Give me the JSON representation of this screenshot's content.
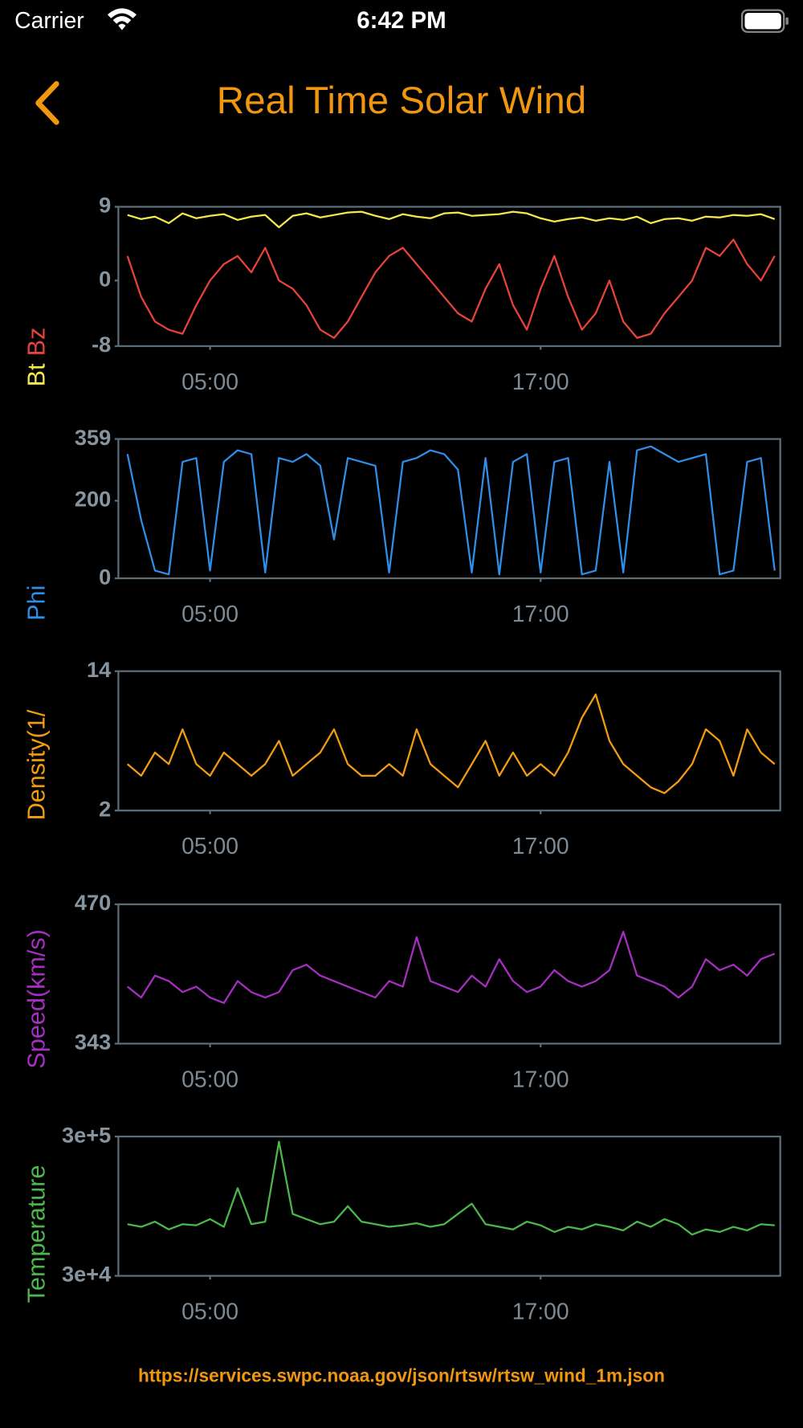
{
  "status_bar": {
    "carrier": "Carrier",
    "time": "6:42 PM"
  },
  "header": {
    "title": "Real Time Solar Wind"
  },
  "chart_data": [
    {
      "type": "line",
      "xlim": [
        1.67,
        25.7
      ],
      "xticks": [
        {
          "value": 5,
          "label": "05:00"
        },
        {
          "value": 17,
          "label": "17:00"
        }
      ],
      "ylim": [
        -8,
        9
      ],
      "yticks": [
        -8,
        0,
        9
      ],
      "x": [
        2,
        2.5,
        3,
        3.5,
        4,
        4.5,
        5,
        5.5,
        6,
        6.5,
        7,
        7.5,
        8,
        8.5,
        9,
        9.5,
        10,
        10.5,
        11,
        11.5,
        12,
        12.5,
        13,
        13.5,
        14,
        14.5,
        15,
        15.5,
        16,
        16.5,
        17,
        17.5,
        18,
        18.5,
        19,
        19.5,
        20,
        20.5,
        21,
        21.5,
        22,
        22.5,
        23,
        23.5,
        24,
        24.5,
        25,
        25.5
      ],
      "series": [
        {
          "name": "Bt",
          "color": "#f5e84a",
          "values": [
            8,
            7.5,
            7.8,
            7,
            8.2,
            7.6,
            7.9,
            8.1,
            7.4,
            7.8,
            8,
            6.5,
            7.9,
            8.2,
            7.7,
            8,
            8.3,
            8.4,
            7.9,
            7.5,
            8.1,
            7.8,
            7.6,
            8.2,
            8.3,
            7.9,
            8,
            8.1,
            8.4,
            8.2,
            7.6,
            7.2,
            7.5,
            7.7,
            7.3,
            7.6,
            7.4,
            7.8,
            7,
            7.5,
            7.6,
            7.3,
            7.8,
            7.7,
            8,
            7.9,
            8.1,
            7.5
          ]
        },
        {
          "name": "Bz",
          "color": "#e8433a",
          "values": [
            3,
            -2,
            -5,
            -6,
            -6.5,
            -3,
            0,
            2,
            3,
            1,
            4,
            0,
            -1,
            -3,
            -6,
            -7,
            -5,
            -2,
            1,
            3,
            4,
            2,
            0,
            -2,
            -4,
            -5,
            -1,
            2,
            -3,
            -6,
            -1,
            3,
            -2,
            -6,
            -4,
            0,
            -5,
            -7,
            -6.5,
            -4,
            -2,
            0,
            4,
            3,
            5,
            2,
            0,
            3
          ]
        }
      ]
    },
    {
      "type": "line",
      "xlim": [
        1.67,
        25.7
      ],
      "xticks": [
        {
          "value": 5,
          "label": "05:00"
        },
        {
          "value": 17,
          "label": "17:00"
        }
      ],
      "ylim": [
        0,
        359
      ],
      "yticks": [
        0,
        200,
        359
      ],
      "x": [
        2,
        2.5,
        3,
        3.5,
        4,
        4.5,
        5,
        5.5,
        6,
        6.5,
        7,
        7.5,
        8,
        8.5,
        9,
        9.5,
        10,
        10.5,
        11,
        11.5,
        12,
        12.5,
        13,
        13.5,
        14,
        14.5,
        15,
        15.5,
        16,
        16.5,
        17,
        17.5,
        18,
        18.5,
        19,
        19.5,
        20,
        20.5,
        21,
        21.5,
        22,
        22.5,
        23,
        23.5,
        24,
        24.5,
        25,
        25.5
      ],
      "series": [
        {
          "name": "Phi",
          "color": "#2f8fe8",
          "values": [
            320,
            150,
            20,
            10,
            300,
            310,
            20,
            300,
            330,
            320,
            15,
            310,
            300,
            320,
            290,
            100,
            310,
            300,
            290,
            15,
            300,
            310,
            330,
            320,
            280,
            15,
            310,
            10,
            300,
            320,
            15,
            300,
            310,
            10,
            20,
            300,
            15,
            330,
            340,
            320,
            300,
            310,
            320,
            10,
            20,
            300,
            310,
            20
          ]
        }
      ]
    },
    {
      "type": "line",
      "xlim": [
        1.67,
        25.7
      ],
      "xticks": [
        {
          "value": 5,
          "label": "05:00"
        },
        {
          "value": 17,
          "label": "17:00"
        }
      ],
      "ylim": [
        2,
        14
      ],
      "yticks": [
        2,
        14
      ],
      "x": [
        2,
        2.5,
        3,
        3.5,
        4,
        4.5,
        5,
        5.5,
        6,
        6.5,
        7,
        7.5,
        8,
        8.5,
        9,
        9.5,
        10,
        10.5,
        11,
        11.5,
        12,
        12.5,
        13,
        13.5,
        14,
        14.5,
        15,
        15.5,
        16,
        16.5,
        17,
        17.5,
        18,
        18.5,
        19,
        19.5,
        20,
        20.5,
        21,
        21.5,
        22,
        22.5,
        23,
        23.5,
        24,
        24.5,
        25,
        25.5
      ],
      "series": [
        {
          "name": "Density(1/",
          "color": "#f39c12",
          "values": [
            6,
            5,
            7,
            6,
            9,
            6,
            5,
            7,
            6,
            5,
            6,
            8,
            5,
            6,
            7,
            9,
            6,
            5,
            5,
            6,
            5,
            9,
            6,
            5,
            4,
            6,
            8,
            5,
            7,
            5,
            6,
            5,
            7,
            10,
            12,
            8,
            6,
            5,
            4,
            3.5,
            4.5,
            6,
            9,
            8,
            5,
            9,
            7,
            6
          ]
        }
      ]
    },
    {
      "type": "line",
      "xlim": [
        1.67,
        25.7
      ],
      "xticks": [
        {
          "value": 5,
          "label": "05:00"
        },
        {
          "value": 17,
          "label": "17:00"
        }
      ],
      "ylim": [
        343,
        470
      ],
      "yticks": [
        343,
        470
      ],
      "x": [
        2,
        2.5,
        3,
        3.5,
        4,
        4.5,
        5,
        5.5,
        6,
        6.5,
        7,
        7.5,
        8,
        8.5,
        9,
        9.5,
        10,
        10.5,
        11,
        11.5,
        12,
        12.5,
        13,
        13.5,
        14,
        14.5,
        15,
        15.5,
        16,
        16.5,
        17,
        17.5,
        18,
        18.5,
        19,
        19.5,
        20,
        20.5,
        21,
        21.5,
        22,
        22.5,
        23,
        23.5,
        24,
        24.5,
        25,
        25.5
      ],
      "series": [
        {
          "name": "Speed(km/s)",
          "color": "#a52fc0",
          "values": [
            395,
            385,
            405,
            400,
            390,
            395,
            385,
            380,
            400,
            390,
            385,
            390,
            410,
            415,
            405,
            400,
            395,
            390,
            385,
            400,
            395,
            440,
            400,
            395,
            390,
            405,
            395,
            420,
            400,
            390,
            395,
            410,
            400,
            395,
            400,
            410,
            445,
            405,
            400,
            395,
            385,
            395,
            420,
            410,
            415,
            405,
            420,
            425
          ]
        }
      ]
    },
    {
      "type": "line",
      "xlim": [
        1.67,
        25.7
      ],
      "xticks": [
        {
          "value": 5,
          "label": "05:00"
        },
        {
          "value": 17,
          "label": "17:00"
        }
      ],
      "ylim": [
        30000,
        300000
      ],
      "yticks": [
        {
          "value": 30000,
          "label": "3e+4"
        },
        {
          "value": 300000,
          "label": "3e+5"
        }
      ],
      "x": [
        2,
        2.5,
        3,
        3.5,
        4,
        4.5,
        5,
        5.5,
        6,
        6.5,
        7,
        7.5,
        8,
        8.5,
        9,
        9.5,
        10,
        10.5,
        11,
        11.5,
        12,
        12.5,
        13,
        13.5,
        14,
        14.5,
        15,
        15.5,
        16,
        16.5,
        17,
        17.5,
        18,
        18.5,
        19,
        19.5,
        20,
        20.5,
        21,
        21.5,
        22,
        22.5,
        23,
        23.5,
        24,
        24.5,
        25,
        25.5
      ],
      "series": [
        {
          "name": "Temperature",
          "color": "#4cb84c",
          "values": [
            130000,
            125000,
            135000,
            120000,
            130000,
            128000,
            140000,
            125000,
            200000,
            130000,
            135000,
            290000,
            150000,
            140000,
            130000,
            135000,
            165000,
            135000,
            130000,
            125000,
            128000,
            132000,
            125000,
            130000,
            150000,
            170000,
            130000,
            125000,
            120000,
            135000,
            128000,
            115000,
            125000,
            120000,
            130000,
            125000,
            118000,
            135000,
            125000,
            140000,
            130000,
            110000,
            120000,
            115000,
            125000,
            118000,
            130000,
            128000
          ]
        }
      ]
    }
  ],
  "footer": {
    "url": "https://services.swpc.noaa.gov/json/rtsw/rtsw_wind_1m.json"
  }
}
